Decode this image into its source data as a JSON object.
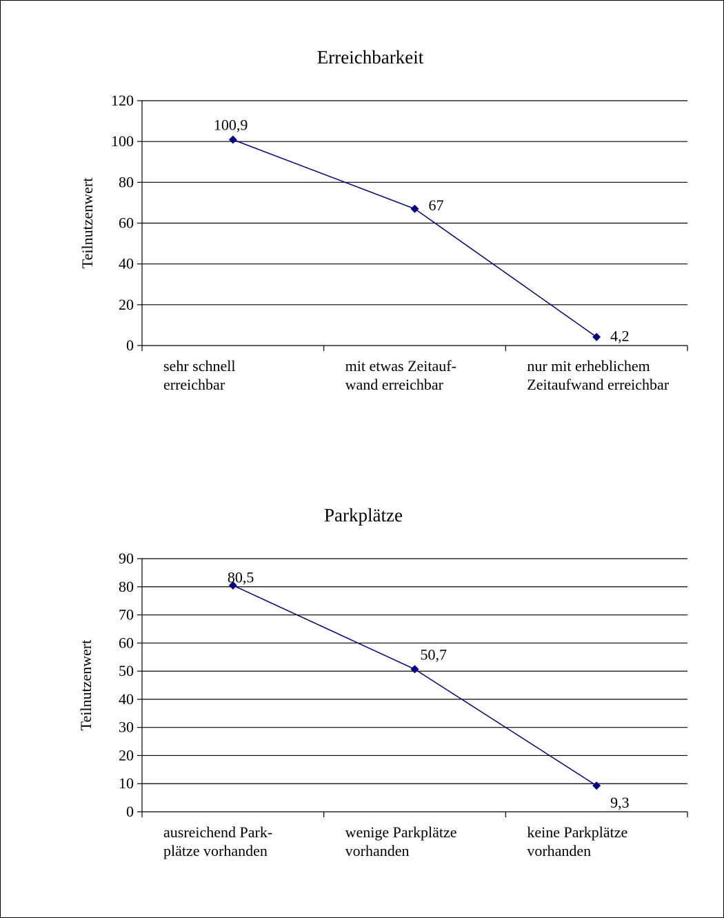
{
  "chart_data": [
    {
      "type": "line",
      "title": "Erreichbarkeit",
      "ylabel": "Teilnutzenwert",
      "xlabel": "",
      "ylim": [
        0,
        120
      ],
      "yticks": [
        0,
        20,
        40,
        60,
        80,
        100,
        120
      ],
      "grid": true,
      "legend": "none",
      "categories": [
        [
          "sehr schnell",
          "erreichbar"
        ],
        [
          "mit etwas Zeitauf-",
          "wand erreichbar"
        ],
        [
          "nur mit erheblichem",
          "Zeitaufwand erreichbar"
        ]
      ],
      "series": [
        {
          "values": [
            100.9,
            67,
            4.2
          ],
          "labels": [
            "100,9",
            "67",
            "4,2"
          ]
        }
      ],
      "colors": {
        "line": "#000080",
        "marker": "#000080",
        "grid": "#000000"
      }
    },
    {
      "type": "line",
      "title": "Parkplätze",
      "ylabel": "Teilnutzenwert",
      "xlabel": "",
      "ylim": [
        0,
        90
      ],
      "yticks": [
        0,
        10,
        20,
        30,
        40,
        50,
        60,
        70,
        80,
        90
      ],
      "grid": true,
      "legend": "none",
      "categories": [
        [
          "ausreichend Park-",
          "plätze vorhanden"
        ],
        [
          "wenige Parkplätze",
          "vorhanden"
        ],
        [
          "keine Parkplätze",
          "vorhanden"
        ]
      ],
      "series": [
        {
          "values": [
            80.5,
            50.7,
            9.3
          ],
          "labels": [
            "80,5",
            "50,7",
            "9,3"
          ]
        }
      ],
      "colors": {
        "line": "#000080",
        "marker": "#000080",
        "grid": "#000000"
      }
    }
  ]
}
